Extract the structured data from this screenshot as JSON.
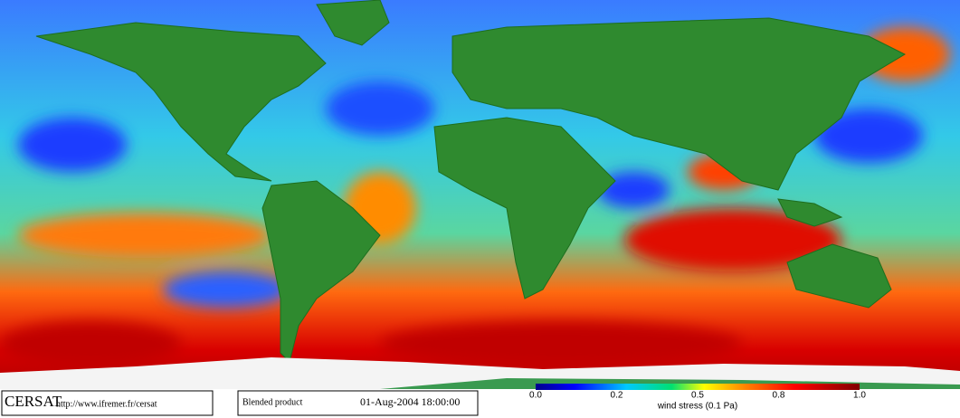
{
  "footer": {
    "logo": "CERSAT",
    "url": "http://www.ifremer.fr/cersat",
    "product": "Blended product",
    "date": "01-Aug-2004 18:00:00"
  },
  "colorbar": {
    "labels": [
      "0.0",
      "0.2",
      "0.5",
      "0.8",
      "1.0"
    ],
    "title": "wind stress (0.1 Pa)"
  }
}
